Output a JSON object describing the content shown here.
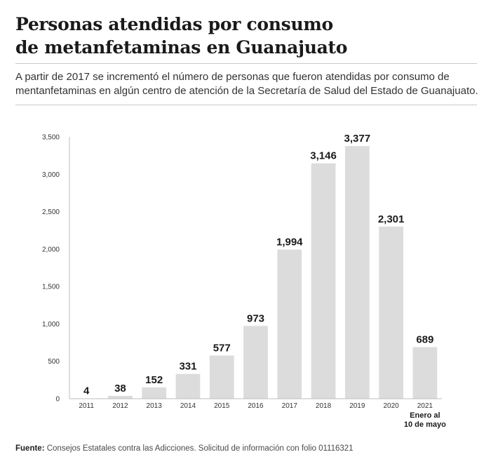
{
  "header": {
    "title_line1": "Personas atendidas por consumo",
    "title_line2": "de metanfetaminas en Guanajuato",
    "subtitle": "A partir de 2017 se incrementó el número de personas que fueron atendidas por consumo de mentanfetaminas en algún centro de atención de la Secretaría de Salud del Estado de Guanajuato."
  },
  "footer": {
    "source_label": "Fuente:",
    "source_text": "Consejos Estatales contra las Adicciones. Solicitud de información con folio 01116321"
  },
  "chart_data": {
    "type": "bar",
    "categories": [
      "2011",
      "2012",
      "2013",
      "2014",
      "2015",
      "2016",
      "2017",
      "2018",
      "2019",
      "2020",
      "2021"
    ],
    "values": [
      4,
      38,
      152,
      331,
      577,
      973,
      1994,
      3146,
      3377,
      2301,
      689
    ],
    "data_labels": [
      "4",
      "38",
      "152",
      "331",
      "577",
      "973",
      "1,994",
      "3,146",
      "3,377",
      "2,301",
      "689"
    ],
    "category_note": {
      "category": "2021",
      "lines": [
        "Enero al",
        "10 de mayo"
      ]
    },
    "ylim": [
      0,
      3500
    ],
    "yticks": [
      0,
      500,
      1000,
      1500,
      2000,
      2500,
      3000,
      3500
    ],
    "ytick_labels": [
      "0",
      "500",
      "1,000",
      "1,500",
      "2,000",
      "2,500",
      "3,000",
      "3,500"
    ],
    "grid": false,
    "xlabel": "",
    "ylabel": "",
    "colors": {
      "bar": "#dcdcdc",
      "axis": "#bdbdbd",
      "label": "#1a1a1a",
      "tick": "#333333"
    }
  }
}
